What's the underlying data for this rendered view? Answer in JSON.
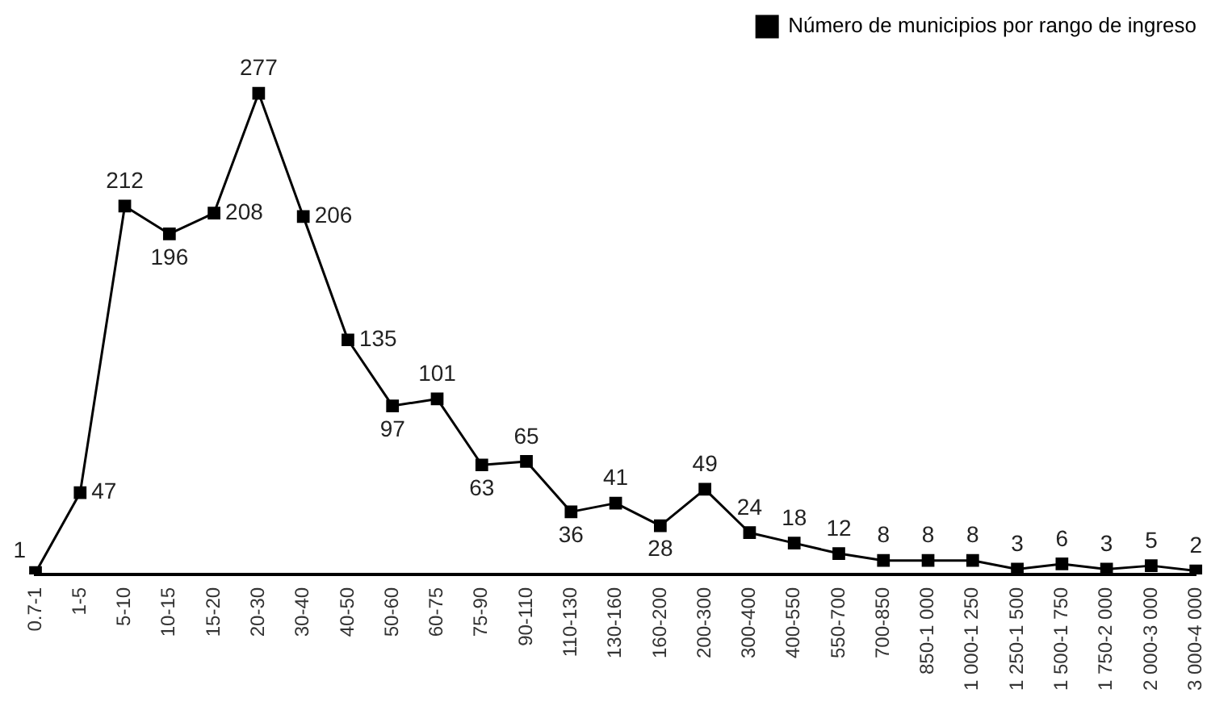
{
  "chart_data": {
    "type": "line",
    "categories": [
      "0.7-1",
      "1-5",
      "5-10",
      "10-15",
      "15-20",
      "20-30",
      "30-40",
      "40-50",
      "50-60",
      "60-75",
      "75-90",
      "90-110",
      "110-130",
      "130-160",
      "160-200",
      "200-300",
      "300-400",
      "400-550",
      "550-700",
      "700-850",
      "850-1 000",
      "1 000-1 250",
      "1 250-1 500",
      "1 500-1 750",
      "1 750-2 000",
      "2 000-3 000",
      "3 000-4 000"
    ],
    "series": [
      {
        "name": "Número de municipios por rango de ingreso",
        "color": "#000000",
        "values": [
          1,
          47,
          212,
          196,
          208,
          277,
          206,
          135,
          97,
          101,
          63,
          65,
          36,
          41,
          28,
          49,
          24,
          18,
          12,
          8,
          8,
          8,
          3,
          6,
          3,
          5,
          2
        ]
      }
    ],
    "data_labels": true,
    "legend": "top right",
    "marker": "square",
    "line_style": "solid",
    "grid": false,
    "tick_labels": "x"
  }
}
